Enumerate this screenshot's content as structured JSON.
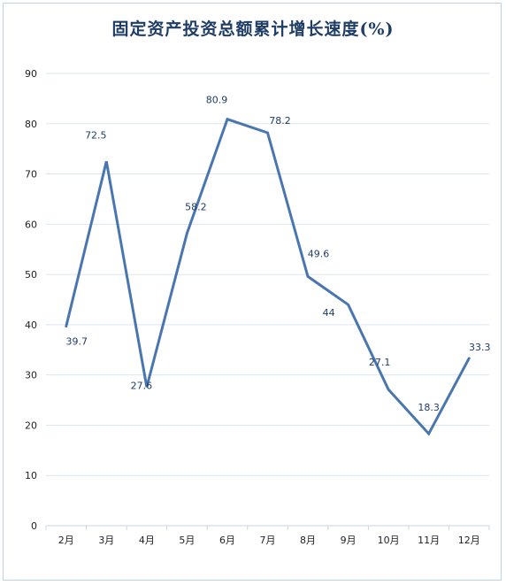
{
  "chart_data": {
    "type": "line",
    "title": "固定资产投资总额累计增长速度(%)",
    "categories": [
      "2月",
      "3月",
      "4月",
      "5月",
      "6月",
      "7月",
      "8月",
      "9月",
      "10月",
      "11月",
      "12月"
    ],
    "series": [
      {
        "values": [
          39.7,
          72.5,
          27.6,
          58.2,
          80.9,
          78.2,
          49.6,
          44,
          27.1,
          18.3,
          33.3
        ],
        "data_labels": [
          "39.7",
          "72.5",
          "27.6",
          "58.2",
          "80.9",
          "78.2",
          "49.6",
          "44",
          "27.1",
          "18.3",
          "33.3"
        ],
        "color": "#4a76b0"
      }
    ],
    "yticks": [
      "0",
      "10",
      "20",
      "30",
      "40",
      "50",
      "60",
      "70",
      "80",
      "90"
    ],
    "ylim": [
      0,
      90
    ],
    "grid": true,
    "legend": "none"
  },
  "colors": {
    "title": "#1f3d66",
    "grid": "#dbe6f1",
    "line": "#4a76b0"
  }
}
